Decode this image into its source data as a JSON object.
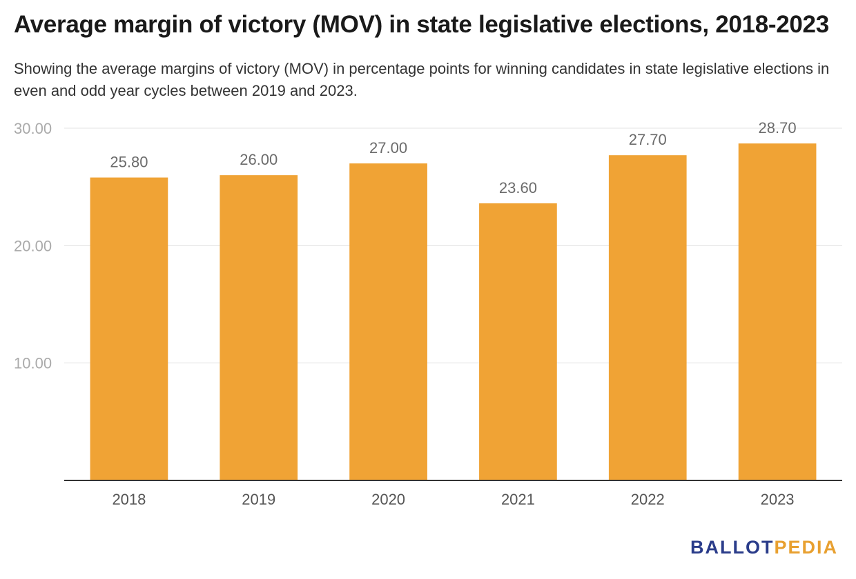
{
  "title": "Average margin of victory (MOV) in state legislative elections, 2018-2023",
  "subtitle": "Showing the average margins of victory (MOV) in percentage points for winning candidates in state legislative elections in even and odd year cycles between 2019 and 2023.",
  "logo": {
    "part_a": "BALLOT",
    "part_b": "PEDIA",
    "colors": {
      "part_a": "#2a3c8a",
      "part_b": "#e8a030"
    }
  },
  "chart_data": {
    "type": "bar",
    "categories": [
      "2018",
      "2019",
      "2020",
      "2021",
      "2022",
      "2023"
    ],
    "values": [
      25.8,
      26.0,
      27.0,
      23.6,
      27.7,
      28.7
    ],
    "value_labels": [
      "25.80",
      "26.00",
      "27.00",
      "23.60",
      "27.70",
      "28.70"
    ],
    "ylim": [
      0,
      30
    ],
    "yticks": [
      10,
      20,
      30
    ],
    "ytick_labels": [
      "10.00",
      "20.00",
      "30.00"
    ],
    "grid": true,
    "bar_color": "#f0a335",
    "xlabel": "",
    "ylabel": ""
  }
}
